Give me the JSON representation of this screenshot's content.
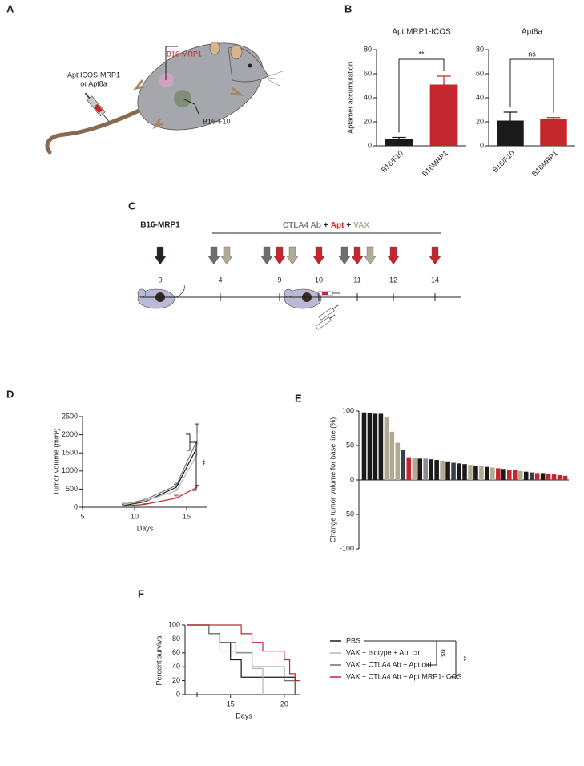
{
  "figure": {
    "panel_labels": [
      "A",
      "B",
      "C",
      "D",
      "E",
      "F"
    ]
  },
  "panel_a": {
    "tumor_top": "B16-MRP1",
    "injection": [
      "Apt ICOS-MRP1",
      "or Apt8a"
    ],
    "tumor_bottom": "B16-F10"
  },
  "panel_c": {
    "title": "B16-MRP1",
    "treatment": [
      {
        "text": "CTLA4 Ab",
        "color": "#7f7f7f"
      },
      {
        "text": "+",
        "color": "#231f20"
      },
      {
        "text": "Apt",
        "color": "#d7262b"
      },
      {
        "text": "+",
        "color": "#231f20"
      },
      {
        "text": "VAX",
        "color": "#b1aa92"
      }
    ],
    "days": [
      {
        "label": "0",
        "arrows": [
          "#2b2220"
        ]
      },
      {
        "label": "4",
        "arrows": [
          "#6d6e71",
          "#b1aa92"
        ]
      },
      {
        "label": "9",
        "arrows": [
          "#6d6e71",
          "#c4262e",
          "#b1aa92"
        ]
      },
      {
        "label": "10",
        "arrows": [
          "#c4262e"
        ]
      },
      {
        "label": "11",
        "arrows": [
          "#6d6e71",
          "#c4262e",
          "#b1aa92"
        ]
      },
      {
        "label": "12",
        "arrows": [
          "#c4262e"
        ]
      },
      {
        "label": "14",
        "arrows": [
          "#c4262e"
        ]
      }
    ]
  },
  "chart_data": [
    {
      "type": "bar",
      "title": "Apt MRP1-ICOS",
      "ylabel": "Aptamer accumulation",
      "categories": [
        "B16/F10",
        "B16MRP1"
      ],
      "values": [
        6,
        51
      ],
      "errors": [
        1,
        7
      ],
      "colors": [
        "#1a1a1a",
        "#c4262e"
      ],
      "ylim": [
        0,
        80
      ],
      "yticks": [
        0,
        20,
        40,
        60,
        80
      ],
      "annotation": "**"
    },
    {
      "type": "bar",
      "title": "Apt8a",
      "categories": [
        "B16/F10",
        "B16MRP1"
      ],
      "values": [
        21,
        22
      ],
      "errors": [
        7,
        1.5
      ],
      "colors": [
        "#1a1a1a",
        "#c4262e"
      ],
      "ylim": [
        0,
        80
      ],
      "yticks": [
        0,
        20,
        40,
        60,
        80
      ],
      "annotation": "ns"
    },
    {
      "type": "line",
      "ylabel": "Tumor volume (mm³)",
      "xlabel": "Days",
      "x": [
        9,
        11,
        14,
        16
      ],
      "series": [
        {
          "color": "#1a1a1a",
          "values": [
            50,
            150,
            550,
            1650
          ],
          "errors": [
            20,
            40,
            80,
            650
          ]
        },
        {
          "color": "#7a7a7a",
          "values": [
            80,
            210,
            600,
            1850
          ],
          "errors": [
            30,
            50,
            90,
            200
          ]
        },
        {
          "color": "#b5b5b5",
          "values": [
            70,
            180,
            450,
            1450
          ],
          "errors": [
            20,
            40,
            60,
            300
          ]
        },
        {
          "color": "#c4262e",
          "values": [
            30,
            80,
            250,
            550
          ],
          "errors": [
            10,
            20,
            80,
            60
          ]
        }
      ],
      "xlim": [
        5,
        17
      ],
      "xticks": [
        5,
        10,
        15
      ],
      "ylim": [
        0,
        2500
      ],
      "yticks": [
        0,
        500,
        1000,
        1500,
        2000,
        2500
      ],
      "annotation": "**"
    },
    {
      "type": "bar",
      "ylabel": "Change tumor volume for base line (%)",
      "values": [
        98,
        97,
        96,
        96,
        91,
        70,
        54,
        43,
        33,
        32,
        31,
        31,
        30,
        29,
        28,
        27,
        25,
        24,
        23,
        22,
        21,
        20,
        19,
        18,
        17,
        16,
        15,
        14,
        13,
        12,
        11,
        10,
        10,
        9,
        8,
        7,
        6
      ],
      "colors": [
        "#1a1a1a",
        "#1a1a1a",
        "#1a1a1a",
        "#1a1a1a",
        "#b1aa92",
        "#b1aa92",
        "#b1aa92",
        "#3a3f4d",
        "#c4262e",
        "#b1aa92",
        "#1a1a1a",
        "#8c8c8c",
        "#1a1a1a",
        "#1a1a1a",
        "#b1aa92",
        "#1a1a1a",
        "#3a3f4d",
        "#1a1a1a",
        "#1a1a1a",
        "#b1aa92",
        "#1a1a1a",
        "#b1aa92",
        "#1a1a1a",
        "#b1aa92",
        "#c4262e",
        "#1a1a1a",
        "#c4262e",
        "#c4262e",
        "#b1aa92",
        "#1a1a1a",
        "#3a3f4d",
        "#c4262e",
        "#1a1a1a",
        "#c4262e",
        "#c4262e",
        "#c4262e",
        "#c4262e"
      ],
      "ylim": [
        -100,
        100
      ],
      "yticks": [
        -100,
        -50,
        0,
        50,
        100
      ]
    },
    {
      "type": "step",
      "ylabel": "Percent survival",
      "xlabel": "Days",
      "series": [
        {
          "name": "PBS",
          "color": "#1a1a1a",
          "x": [
            11,
            13,
            14,
            15,
            16,
            21
          ],
          "values": [
            100,
            87.5,
            75,
            50,
            25,
            0
          ]
        },
        {
          "name": "VAX + Isotype + Apt ctrl",
          "color": "#b5b5b5",
          "x": [
            11,
            13,
            14,
            16,
            17,
            18
          ],
          "values": [
            100,
            87.5,
            62.5,
            62.5,
            37.5,
            0
          ]
        },
        {
          "name": "VAX + CTLA4 Ab + Apt ctrl",
          "color": "#6d6e71",
          "x": [
            11,
            13,
            14,
            15.5,
            17,
            20,
            21
          ],
          "values": [
            100,
            87.5,
            75,
            60,
            40,
            20,
            0
          ]
        },
        {
          "name": "VAX + CTLA4 Ab + Apt MRP1-ICOS",
          "color": "#c4262e",
          "x": [
            11,
            16,
            17,
            18,
            19,
            20,
            20.5,
            21,
            21.5
          ],
          "values": [
            100,
            87.5,
            75,
            62.5,
            62.5,
            50,
            30,
            20,
            20
          ]
        }
      ],
      "xlim": [
        11,
        21.5
      ],
      "xticks": [
        15,
        20
      ],
      "ylim": [
        0,
        100
      ],
      "yticks": [
        0,
        20,
        40,
        60,
        80,
        100
      ],
      "annotations": [
        "ns",
        "**"
      ]
    }
  ]
}
